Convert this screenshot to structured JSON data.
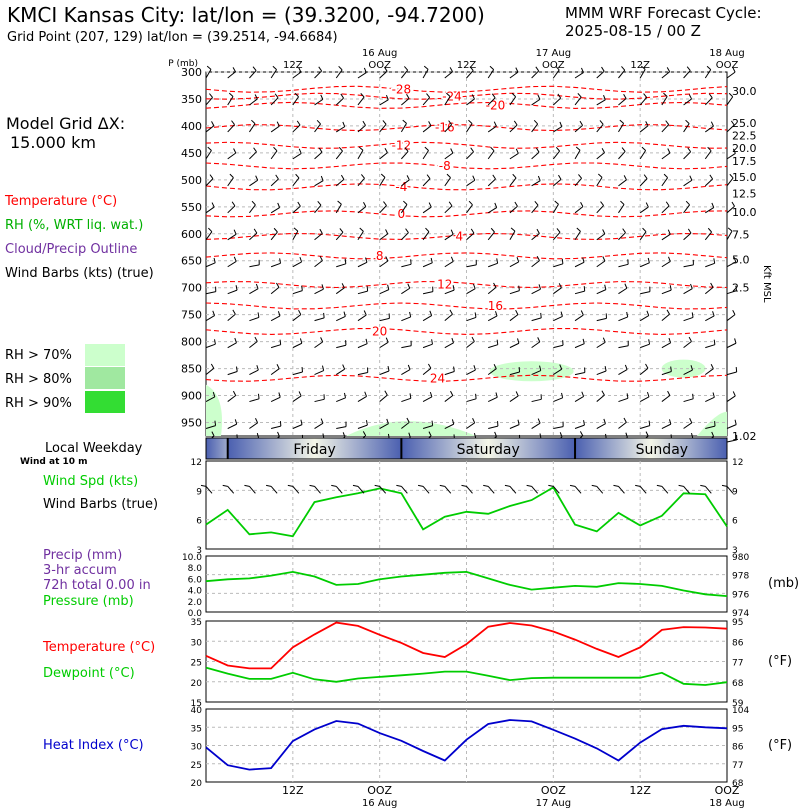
{
  "header": {
    "title": "KMCI Kansas City:  lat/lon = (39.3200, -94.7200)",
    "subtitle": "Grid Point (207, 129) lat/lon = (39.2514, -94.6684)",
    "cycle_line1": "MMM WRF Forecast Cycle:",
    "cycle_line2": "2025-08-15 / 00  Z"
  },
  "legend": {
    "grid_label": "Model Grid ΔX:",
    "grid_value": "15.000 km",
    "temperature": "Temperature (°C)",
    "rh": "RH (%, WRT liq. wat.)",
    "cloud": "Cloud/Precip Outline",
    "wind": "Wind Barbs (kts) (true)",
    "rh70": "RH > 70%",
    "rh80": "RH > 80%",
    "rh90": "RH > 90%",
    "local_weekday": "Local Weekday",
    "wind_at": "Wind at 10 m",
    "wind_spd": "Wind Spd (kts)",
    "wind_barbs": "Wind Barbs (true)",
    "precip1": "Precip (mm)",
    "precip2": "3-hr accum",
    "precip3": "72h total 0.00 in",
    "pressure": "Pressure (mb)",
    "temp2": "Temperature (°C)",
    "dewpoint": "Dewpoint (°C)",
    "heat_index": "Heat Index (°C)",
    "unit_mb": "(mb)",
    "unit_f1": "(°F)",
    "unit_f2": "(°F)",
    "kft": "Kft MSL"
  },
  "colors": {
    "temperature": "#ff0000",
    "rh": "#00b000",
    "cloud": "#7030a0",
    "wind_spd": "#00cc00",
    "heat_index": "#0000cc",
    "rh70": "#ccffcc",
    "rh80": "#a0e8a0",
    "rh90": "#33dd33",
    "band": "#4a5fb0"
  },
  "time_axis": {
    "top_labels": [
      {
        "t": 12,
        "line1": "",
        "line2": "12Z"
      },
      {
        "t": 24,
        "line1": "16 Aug",
        "line2": "OOZ"
      },
      {
        "t": 36,
        "line1": "",
        "line2": "12Z"
      },
      {
        "t": 48,
        "line1": "17 Aug",
        "line2": "OOZ"
      },
      {
        "t": 60,
        "line1": "",
        "line2": "12Z"
      },
      {
        "t": 72,
        "line1": "18 Aug",
        "line2": "OOZ"
      }
    ],
    "bottom_labels": [
      {
        "t": 12,
        "line1": "12Z",
        "line2": ""
      },
      {
        "t": 24,
        "line1": "OOZ",
        "line2": "16 Aug"
      },
      {
        "t": 48,
        "line1": "OOZ",
        "line2": "17 Aug"
      },
      {
        "t": 60,
        "line1": "12Z",
        "line2": ""
      },
      {
        "t": 72,
        "line1": "OOZ",
        "line2": "18 Aug"
      }
    ],
    "weekdays": [
      {
        "t": 0,
        "label": ""
      },
      {
        "t": 15,
        "label": "Friday"
      },
      {
        "t": 39,
        "label": "Saturday"
      },
      {
        "t": 63,
        "label": "Sunday"
      }
    ]
  },
  "chart_data": [
    {
      "type": "line",
      "title": "Temperature / Wind profile",
      "ylabel": "P (mb)",
      "y2label": "Kft MSL",
      "pressure_ticks": [
        300,
        350,
        400,
        450,
        500,
        550,
        600,
        650,
        700,
        750,
        800,
        850,
        900,
        950
      ],
      "kft_ticks": [
        "30.0",
        "25.0",
        "22.5",
        "20.0",
        "17.5",
        "15.0",
        "12.5",
        "10.0",
        "7.5",
        "5.0",
        "2.5",
        "1.02"
      ],
      "isotherm_labels": [
        {
          "t": 27,
          "p": 332,
          "label": "-28"
        },
        {
          "t": 34,
          "p": 345,
          "label": "-24"
        },
        {
          "t": 40,
          "p": 362,
          "label": "-20"
        },
        {
          "t": 33,
          "p": 403,
          "label": "-16"
        },
        {
          "t": 27,
          "p": 436,
          "label": "-12"
        },
        {
          "t": 33,
          "p": 474,
          "label": "-8"
        },
        {
          "t": 27,
          "p": 513,
          "label": "-4"
        },
        {
          "t": 27,
          "p": 563,
          "label": "0"
        },
        {
          "t": 35,
          "p": 605,
          "label": "4"
        },
        {
          "t": 24,
          "p": 641,
          "label": "8"
        },
        {
          "t": 33,
          "p": 694,
          "label": "12"
        },
        {
          "t": 40,
          "p": 734,
          "label": "16"
        },
        {
          "t": 24,
          "p": 781,
          "label": "20"
        },
        {
          "t": 32,
          "p": 868,
          "label": "24"
        }
      ]
    },
    {
      "type": "line",
      "series": [
        {
          "name": "Wind Spd (kts)",
          "x": [
            0,
            3,
            6,
            9,
            12,
            15,
            18,
            21,
            24,
            27,
            30,
            33,
            36,
            39,
            42,
            45,
            48,
            51,
            54,
            57,
            60,
            63,
            66,
            69,
            72
          ],
          "values": [
            5.5,
            7.0,
            4.5,
            4.7,
            4.3,
            7.8,
            8.3,
            8.7,
            9.2,
            8.7,
            5.0,
            6.3,
            6.8,
            6.6,
            7.4,
            8.0,
            9.3,
            5.5,
            4.8,
            6.7,
            5.4,
            6.4,
            8.7,
            8.6,
            5.3
          ]
        }
      ],
      "ylim": [
        3,
        12
      ],
      "yticks": [
        3,
        6,
        9,
        12
      ]
    },
    {
      "type": "line",
      "series": [
        {
          "name": "Pressure (mb)",
          "x": [
            0,
            3,
            6,
            9,
            12,
            15,
            18,
            21,
            24,
            27,
            30,
            33,
            36,
            39,
            42,
            45,
            48,
            51,
            54,
            57,
            60,
            63,
            66,
            69,
            72
          ],
          "values": [
            977.3,
            977.5,
            977.6,
            977.9,
            978.3,
            977.8,
            976.9,
            977.0,
            977.5,
            977.8,
            978.0,
            978.2,
            978.3,
            977.6,
            976.9,
            976.4,
            976.6,
            976.8,
            976.7,
            977.1,
            977.0,
            976.8,
            976.3,
            975.9,
            975.7
          ]
        }
      ],
      "ylim": [
        974,
        980
      ],
      "yticks_left": [
        "0.0",
        "2.0",
        "4.0",
        "6.0",
        "8.0",
        "10.0"
      ],
      "yticks_right": [
        974,
        976,
        978,
        980
      ]
    },
    {
      "type": "line",
      "series": [
        {
          "name": "Temperature (°C)",
          "x": [
            0,
            3,
            6,
            9,
            12,
            15,
            18,
            21,
            24,
            27,
            30,
            33,
            36,
            39,
            42,
            45,
            48,
            51,
            54,
            57,
            60,
            63,
            66,
            69,
            72
          ],
          "values": [
            26.4,
            24.0,
            23.3,
            23.3,
            28.5,
            31.7,
            34.6,
            33.8,
            31.6,
            29.6,
            27.1,
            26.1,
            29.3,
            33.6,
            34.5,
            33.9,
            32.4,
            30.4,
            28.1,
            26.1,
            28.5,
            32.8,
            33.5,
            33.4,
            33.1
          ]
        },
        {
          "name": "Dewpoint (°C)",
          "x": [
            0,
            3,
            6,
            9,
            12,
            15,
            18,
            21,
            24,
            27,
            30,
            33,
            36,
            39,
            42,
            45,
            48,
            51,
            54,
            57,
            60,
            63,
            66,
            69,
            72
          ],
          "values": [
            23.5,
            22.0,
            20.7,
            20.7,
            22.2,
            20.6,
            20.0,
            20.8,
            21.2,
            21.6,
            22.0,
            22.5,
            22.5,
            21.5,
            20.4,
            20.9,
            21.0,
            21.0,
            21.0,
            21.0,
            21.0,
            22.2,
            19.5,
            19.2,
            19.9
          ]
        }
      ],
      "ylim": [
        15,
        35
      ],
      "yticks_left": [
        15,
        20,
        25,
        30,
        35
      ],
      "yticks_right": [
        59,
        68,
        77,
        86,
        95
      ]
    },
    {
      "type": "line",
      "series": [
        {
          "name": "Heat Index (°C)",
          "x": [
            0,
            3,
            6,
            9,
            12,
            15,
            18,
            21,
            24,
            27,
            30,
            33,
            36,
            39,
            42,
            45,
            48,
            51,
            54,
            57,
            60,
            63,
            66,
            69,
            72
          ],
          "values": [
            29.5,
            24.6,
            23.4,
            23.8,
            31.2,
            34.4,
            36.7,
            36.0,
            33.4,
            31.3,
            28.5,
            25.9,
            31.6,
            35.9,
            37.0,
            36.6,
            34.3,
            31.9,
            29.2,
            25.9,
            30.8,
            34.5,
            35.4,
            35.0,
            34.7
          ]
        }
      ],
      "ylim": [
        20,
        40
      ],
      "yticks_left": [
        20,
        25,
        30,
        35,
        40
      ],
      "yticks_right": [
        68,
        77,
        86,
        95,
        104
      ]
    }
  ]
}
